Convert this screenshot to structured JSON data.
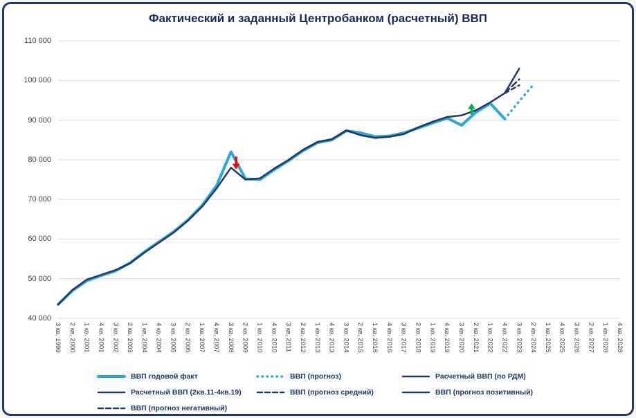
{
  "chart_data": {
    "type": "line",
    "title": "Фактический и заданный Центробанком (расчетный) ВВП",
    "ylim": [
      40000,
      110000
    ],
    "grid": "horizontal",
    "legend_position": "bottom",
    "y_ticks": [
      {
        "value": 110000,
        "label": "110 000"
      },
      {
        "value": 100000,
        "label": "100 000"
      },
      {
        "value": 90000,
        "label": "90 000"
      },
      {
        "value": 80000,
        "label": "80 000"
      },
      {
        "value": 70000,
        "label": "70 000"
      },
      {
        "value": 60000,
        "label": "60 000"
      },
      {
        "value": 50000,
        "label": "50 000"
      },
      {
        "value": 40000,
        "label": "40 000"
      }
    ],
    "x_labels": [
      "3 кв. 1999",
      "2 кв. 2000",
      "1 кв. 2001",
      "4 кв. 2001",
      "3 кв. 2002",
      "2 кв. 2003",
      "1 кв. 2004",
      "4 кв. 2004",
      "3 кв. 2005",
      "2 кв. 2006",
      "1 кв. 2007",
      "4 кв. 2007",
      "3 кв. 2008",
      "2 кв. 2009",
      "1 кв. 2010",
      "4 кв. 2010",
      "3 кв. 2011",
      "2 кв. 2012",
      "1 кв. 2013",
      "4 кв. 2013",
      "3 кв. 2014",
      "2 кв. 2015",
      "1 кв. 2016",
      "4 кв. 2016",
      "3 кв. 2017",
      "2 кв. 2018",
      "1 кв. 2019",
      "4 кв. 2019",
      "3 кв. 2020",
      "2 кв. 2021",
      "1 кв. 2022",
      "4 кв. 2022",
      "3 кв. 2023",
      "2 кв. 2024",
      "1 кв. 2025",
      "4 кв. 2025",
      "3 кв. 2026",
      "2 кв. 2027",
      "1 кв. 2028",
      "4 кв. 2028"
    ],
    "series": [
      {
        "id": "fact",
        "name": "ВВП годовой факт",
        "color": "#2BA7DF",
        "width": 4,
        "dash": "",
        "values": [
          43500,
          47000,
          49500,
          50800,
          52000,
          54000,
          56800,
          59300,
          61800,
          64800,
          68500,
          73500,
          82000,
          75200,
          75000,
          77500,
          79800,
          82300,
          84300,
          85000,
          87300,
          86800,
          85800,
          86000,
          86800,
          88000,
          89300,
          90500,
          88700,
          92000,
          94200,
          90300,
          null,
          null,
          null,
          null,
          null,
          null,
          null,
          null
        ]
      },
      {
        "id": "fact-forecast",
        "name": "ВВП (прогноз)",
        "color": "#2BA7DF",
        "width": 3.5,
        "dash": "0.5 7",
        "values": [
          null,
          null,
          null,
          null,
          null,
          null,
          null,
          null,
          null,
          null,
          null,
          null,
          null,
          null,
          null,
          null,
          null,
          null,
          null,
          null,
          null,
          null,
          null,
          null,
          null,
          null,
          null,
          null,
          null,
          null,
          null,
          90300,
          94800,
          99000,
          null,
          null,
          null,
          null,
          null,
          null
        ]
      },
      {
        "id": "calc-rdm",
        "name": "Расчетный ВВП (по РДМ)",
        "color": "#1F3864",
        "width": 2.5,
        "dash": "",
        "values": [
          43500,
          47200,
          49800,
          51000,
          52200,
          53900,
          56600,
          59100,
          61600,
          64600,
          68200,
          72800,
          78000,
          75000,
          75300,
          77800,
          80000,
          82500,
          84500,
          85200,
          87400,
          86200,
          85500,
          85800,
          86500,
          88200,
          89600,
          90800,
          91200,
          92500,
          94500,
          96800,
          null,
          null,
          null,
          null,
          null,
          null,
          null,
          null
        ]
      },
      {
        "id": "calc-2011-2019",
        "name": "Расчетный ВВП (2кв.11-4кв.19)",
        "color": "#1F3864",
        "width": 2.5,
        "dash": "",
        "values": [
          null,
          null,
          null,
          null,
          null,
          null,
          null,
          null,
          null,
          null,
          null,
          null,
          null,
          null,
          null,
          null,
          80000,
          82500,
          84500,
          85200,
          87400,
          86200,
          85500,
          85800,
          86500,
          88200,
          89600,
          90800,
          null,
          null,
          null,
          null,
          null,
          null,
          null,
          null,
          null,
          null,
          null,
          null
        ]
      },
      {
        "id": "forecast-mid",
        "name": "ВВП (прогноз средний)",
        "color": "#1F3864",
        "width": 2.5,
        "dash": "9 5",
        "values": [
          null,
          null,
          null,
          null,
          null,
          null,
          null,
          null,
          null,
          null,
          null,
          null,
          null,
          null,
          null,
          null,
          null,
          null,
          null,
          null,
          null,
          null,
          null,
          null,
          null,
          null,
          null,
          null,
          null,
          null,
          null,
          96800,
          100300,
          null,
          null,
          null,
          null,
          null,
          null,
          null
        ]
      },
      {
        "id": "forecast-pos",
        "name": "ВВП (прогноз позитивный)",
        "color": "#1F3864",
        "width": 2.5,
        "dash": "",
        "values": [
          null,
          null,
          null,
          null,
          null,
          null,
          null,
          null,
          null,
          null,
          null,
          null,
          null,
          null,
          null,
          null,
          null,
          null,
          null,
          null,
          null,
          null,
          null,
          null,
          null,
          null,
          null,
          null,
          null,
          null,
          null,
          96800,
          103000,
          null,
          null,
          null,
          null,
          null,
          null,
          null
        ]
      },
      {
        "id": "forecast-neg",
        "name": "ВВП (прогноз негативный)",
        "color": "#1F3864",
        "width": 2.5,
        "dash": "6 5",
        "values": [
          null,
          null,
          null,
          null,
          null,
          null,
          null,
          null,
          null,
          null,
          null,
          null,
          null,
          null,
          null,
          null,
          null,
          null,
          null,
          null,
          null,
          null,
          null,
          null,
          null,
          null,
          null,
          null,
          null,
          null,
          null,
          96800,
          98800,
          null,
          null,
          null,
          null,
          null,
          null,
          null
        ]
      }
    ],
    "annotations": [
      {
        "id": "crisis-2008-arrow",
        "x": 12.35,
        "from": 80800,
        "to": 77600,
        "color": "#FF0000"
      },
      {
        "id": "covid-2020-arrow",
        "x": 28.7,
        "from": 91400,
        "to": 94200,
        "color": "#00B050"
      }
    ]
  },
  "legend": {
    "rows": [
      [
        {
          "label": "ВВП годовой факт",
          "color": "#2BA7DF",
          "width": 4,
          "dash": ""
        },
        {
          "label": "ВВП (прогноз)",
          "color": "#2BA7DF",
          "width": 3.5,
          "dash": "0.5 6.5"
        },
        {
          "label": "Расчетный ВВП (по РДМ)",
          "color": "#1F3864",
          "width": 2.5,
          "dash": ""
        }
      ],
      [
        {
          "label": "Расчетный ВВП (2кв.11-4кв.19)",
          "color": "#1F3864",
          "width": 2.5,
          "dash": ""
        },
        {
          "label": "ВВП (прогноз средний)",
          "color": "#1F3864",
          "width": 2.5,
          "dash": "7 4"
        },
        {
          "label": "ВВП (прогноз позитивный)",
          "color": "#1F3864",
          "width": 2.5,
          "dash": ""
        }
      ],
      [
        {
          "label": "ВВП (прогноз негативный)",
          "color": "#1F3864",
          "width": 2.5,
          "dash": "7 4"
        }
      ]
    ]
  },
  "colors": {
    "fact_blue": "#2BA7DF",
    "calc_navy": "#1F3864",
    "grid": "#D9D9D9",
    "axis_text": "#404040",
    "frame_border": "#1F3864",
    "arrow_red": "#FF0000",
    "arrow_green": "#00B050"
  }
}
